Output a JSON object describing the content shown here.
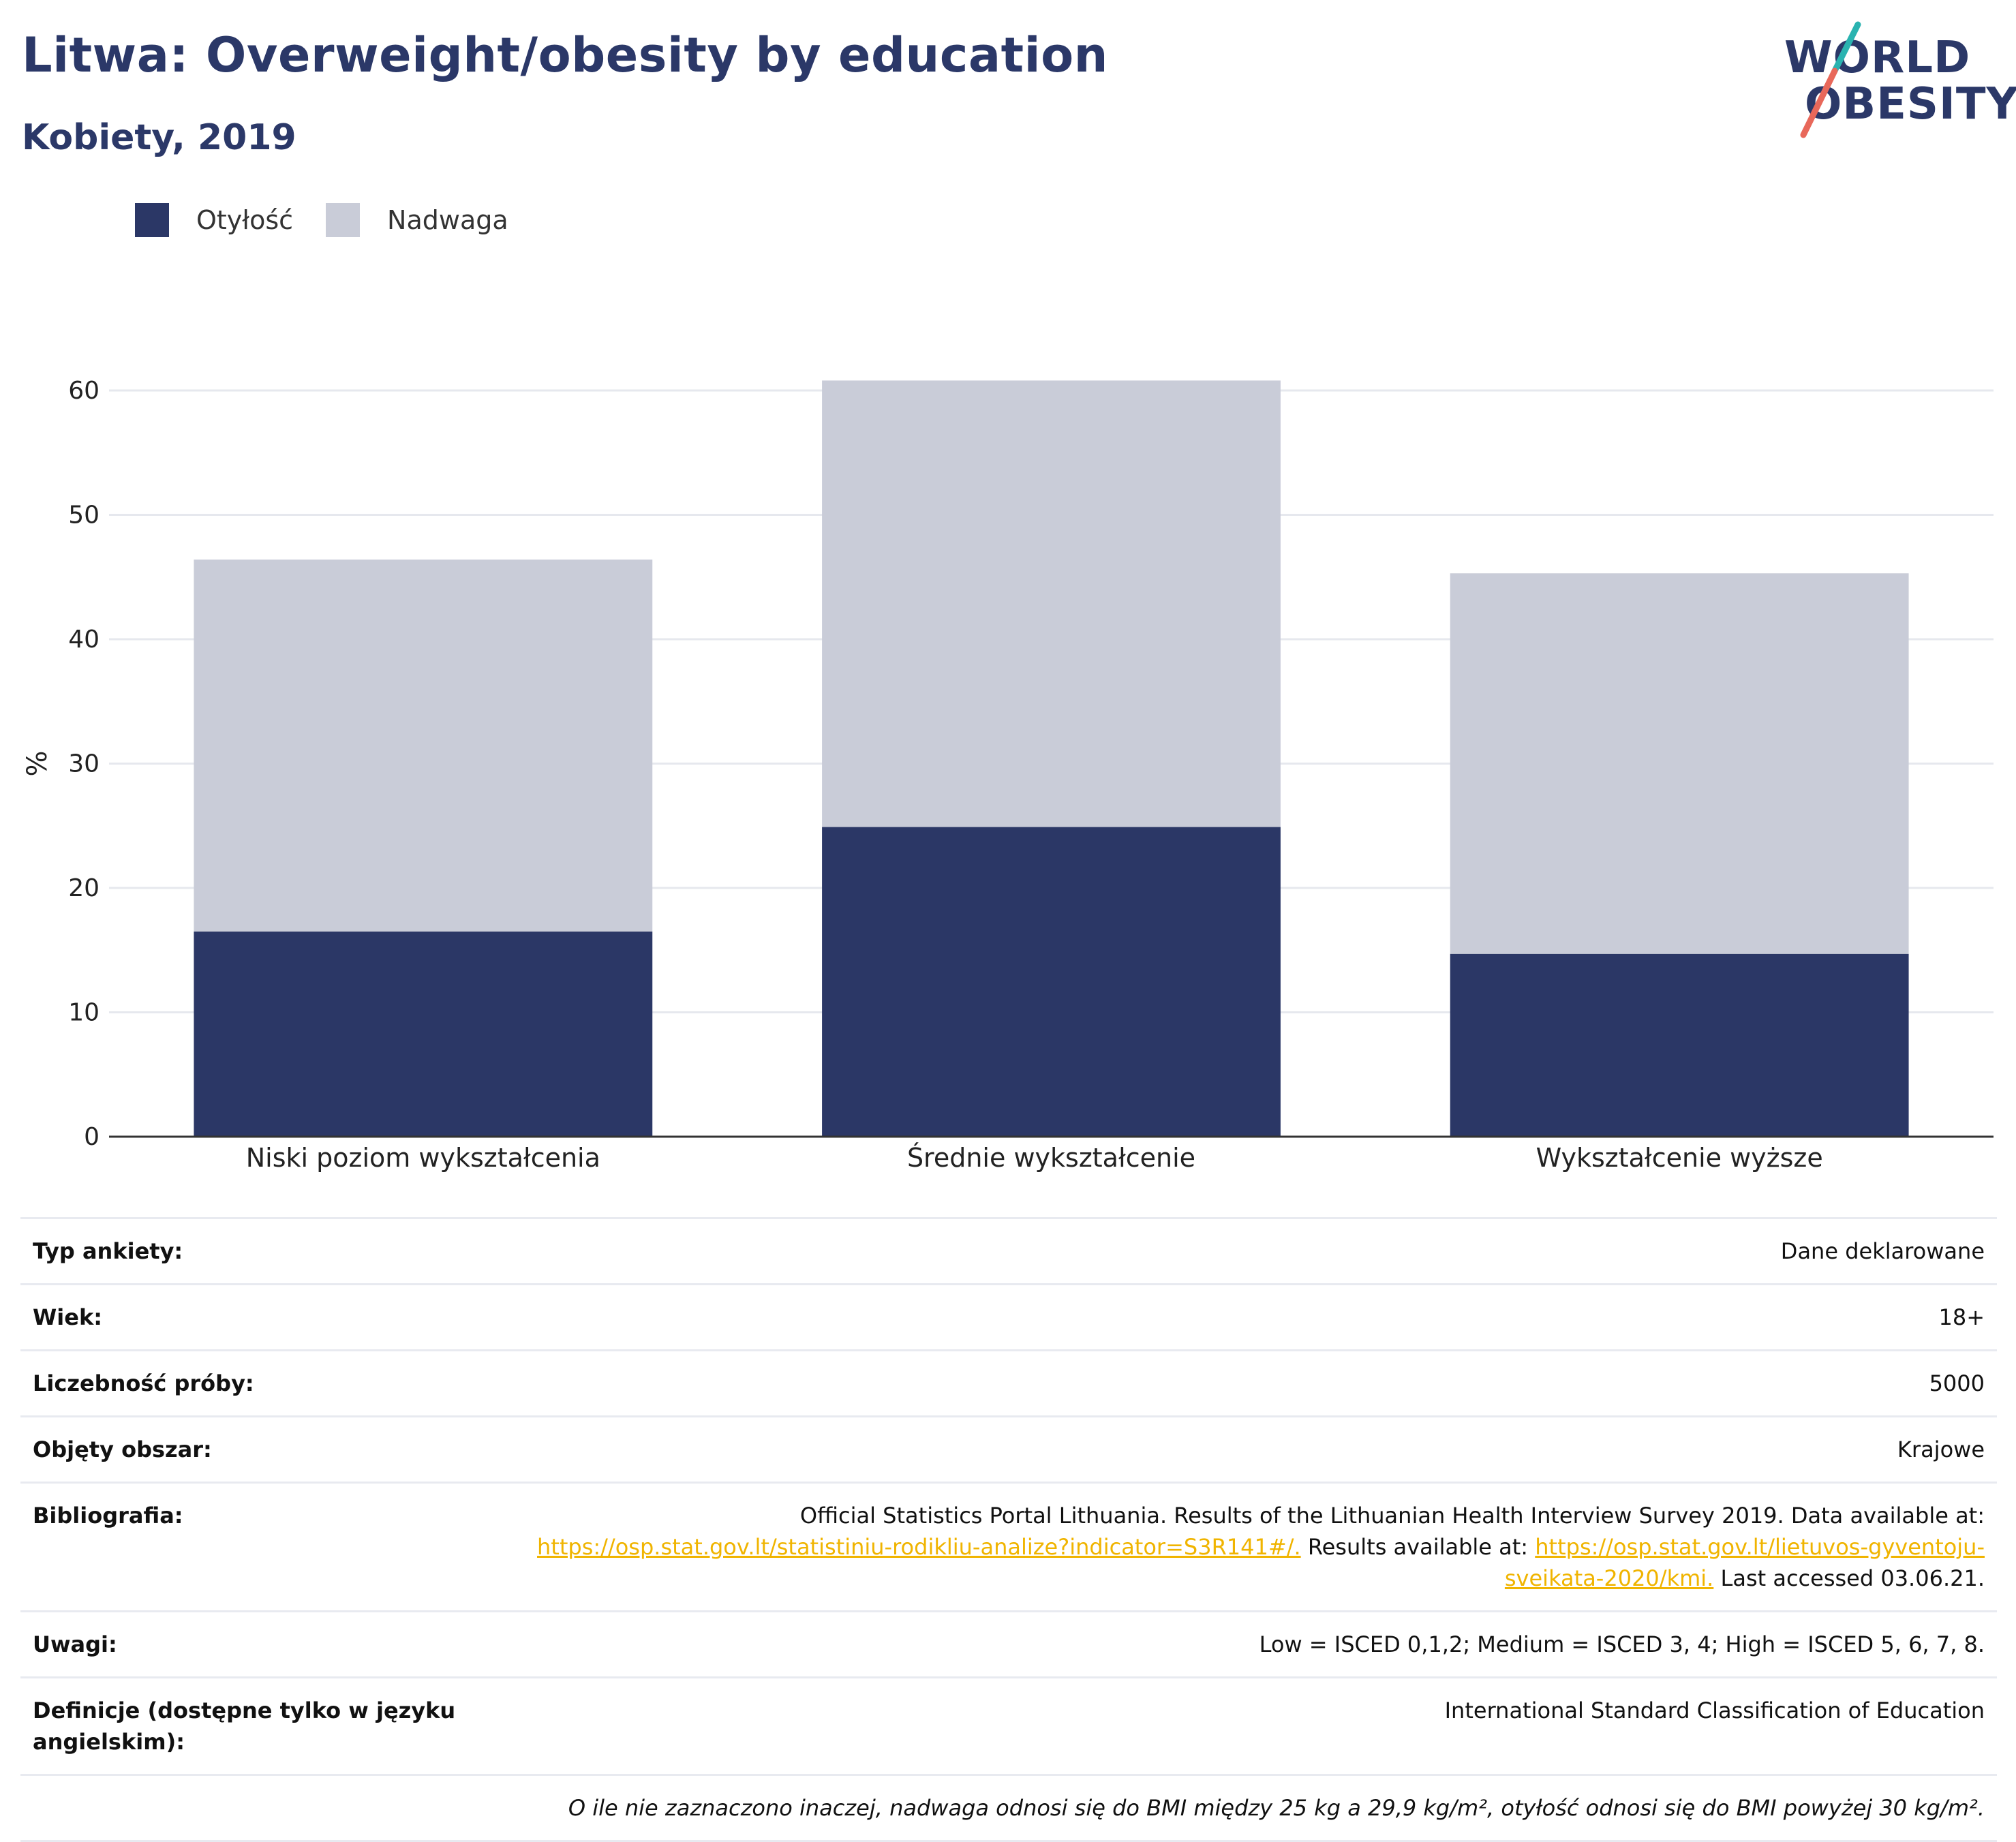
{
  "header": {
    "title": "Litwa: Overweight/obesity by education",
    "subtitle": "Kobiety, 2019"
  },
  "logo": {
    "line1": "WORLD",
    "line2": "OBESITY",
    "slash_color_top": "#2ab3b0",
    "slash_color_bottom": "#e8685a"
  },
  "colors": {
    "obesity": "#2b3766",
    "overweight": "#c9ccd8",
    "axis": "#333333",
    "grid": "#e6e8ee",
    "link": "#f0b400"
  },
  "chart_data": {
    "type": "bar",
    "stacked": true,
    "categories": [
      "Niski poziom wykształcenia",
      "Średnie wykształcenie",
      "Wykształcenie wyższe"
    ],
    "series": [
      {
        "name": "Otyłość",
        "values": [
          16.5,
          24.9,
          14.7
        ]
      },
      {
        "name": "Nadwaga",
        "values": [
          29.9,
          35.9,
          30.6
        ]
      }
    ],
    "ylabel": "%",
    "ylim": [
      0,
      60
    ],
    "yticks": [
      0,
      10,
      20,
      30,
      40,
      50,
      60
    ],
    "grid": true,
    "legend_position": "top-left"
  },
  "meta": {
    "rows": [
      {
        "key": "Typ ankiety:",
        "value": "Dane deklarowane"
      },
      {
        "key": "Wiek:",
        "value": "18+"
      },
      {
        "key": "Liczebność próby:",
        "value": "5000"
      },
      {
        "key": "Objęty obszar:",
        "value": "Krajowe"
      }
    ],
    "bibliography": {
      "key": "Bibliografia:",
      "text1": "Official Statistics Portal Lithuania. Results of the Lithuanian Health Interview Survey 2019. Data available at:",
      "link1": "https://osp.stat.gov.lt/statistiniu-rodikliu-analize?indicator=S3R141#/.",
      "text2": "Results available at:",
      "link2a": "https://osp.stat.gov.lt/lietuvos-gyventoju-",
      "link2b": "sveikata-2020/kmi.",
      "text3": "Last accessed 03.06.21."
    },
    "notes": {
      "key": "Uwagi:",
      "value": "Low = ISCED 0,1,2; Medium = ISCED 3, 4; High = ISCED 5, 6, 7, 8."
    },
    "definitions": {
      "key": "Definicje (dostępne tylko w języku angielskim):",
      "value": "International Standard Classification of Education"
    },
    "footnote": "O ile nie zaznaczono inaczej, nadwaga odnosi się do BMI między 25 kg a 29,9 kg/m², otyłość odnosi się do BMI powyżej 30 kg/m²."
  }
}
